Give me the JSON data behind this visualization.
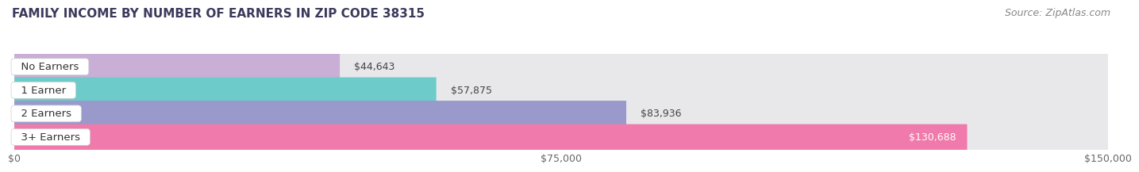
{
  "title": "FAMILY INCOME BY NUMBER OF EARNERS IN ZIP CODE 38315",
  "source": "Source: ZipAtlas.com",
  "categories": [
    "No Earners",
    "1 Earner",
    "2 Earners",
    "3+ Earners"
  ],
  "values": [
    44643,
    57875,
    83936,
    130688
  ],
  "bar_colors": [
    "#c9aed6",
    "#6dcbca",
    "#9999cc",
    "#f07aab"
  ],
  "bar_labels": [
    "$44,643",
    "$57,875",
    "$83,936",
    "$130,688"
  ],
  "label_inside": [
    false,
    false,
    false,
    true
  ],
  "xlim": [
    0,
    150000
  ],
  "xticks": [
    0,
    75000,
    150000
  ],
  "xticklabels": [
    "$0",
    "$75,000",
    "$150,000"
  ],
  "background_color": "#ffffff",
  "bar_bg_color": "#e8e8eb",
  "title_fontsize": 11,
  "source_fontsize": 9,
  "label_fontsize": 9,
  "category_fontsize": 9.5,
  "tick_fontsize": 9
}
